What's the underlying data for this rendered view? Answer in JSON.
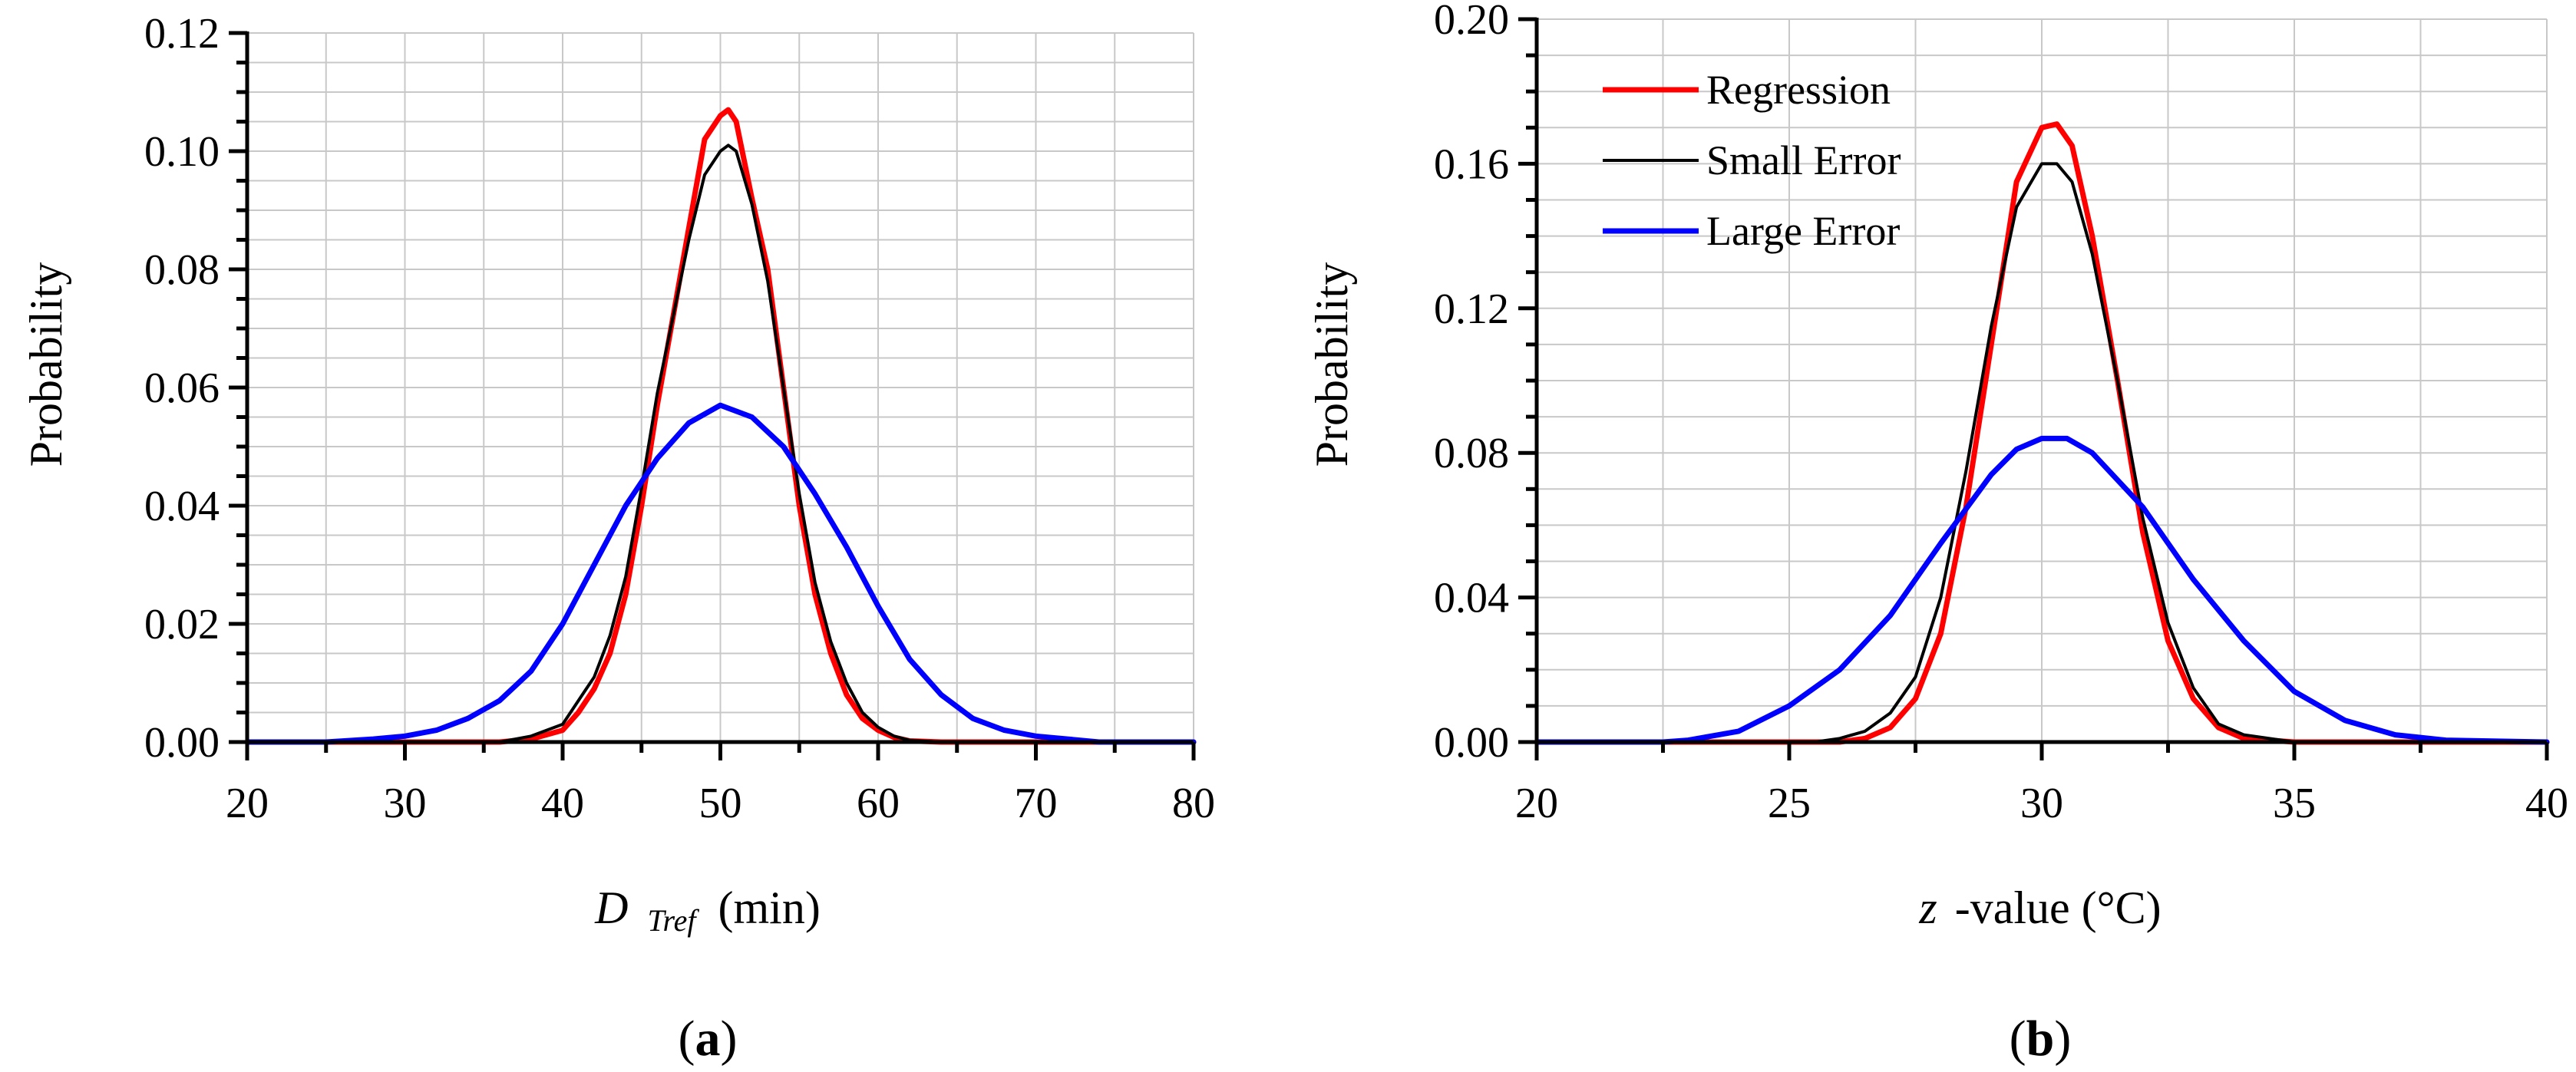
{
  "chart_data": [
    {
      "type": "line",
      "panel_label": "a",
      "title": "",
      "xlabel_main": "D",
      "xlabel_sub": "Tref",
      "xlabel_unit": "(min)",
      "ylabel": "Probability",
      "xlim": [
        20,
        80
      ],
      "ylim": [
        0,
        0.12
      ],
      "x_ticks": [
        20,
        30,
        40,
        50,
        60,
        70,
        80
      ],
      "y_ticks": [
        0,
        0.02,
        0.04,
        0.06,
        0.08,
        0.1,
        0.12
      ],
      "y_tick_labels": [
        "0.00",
        "0.02",
        "0.04",
        "0.06",
        "0.08",
        "0.10",
        "0.12"
      ],
      "grid": true,
      "series": [
        {
          "name": "Regression",
          "color": "#ff0000",
          "x": [
            20,
            36,
            38,
            40,
            41,
            42,
            43,
            44,
            45,
            46,
            47,
            48,
            49,
            50,
            50.5,
            51,
            52,
            53,
            54,
            55,
            56,
            57,
            58,
            59,
            60,
            61,
            62,
            64,
            80
          ],
          "y": [
            0,
            0,
            0.0005,
            0.002,
            0.005,
            0.009,
            0.015,
            0.025,
            0.04,
            0.057,
            0.072,
            0.087,
            0.102,
            0.106,
            0.107,
            0.105,
            0.092,
            0.08,
            0.06,
            0.04,
            0.025,
            0.015,
            0.008,
            0.004,
            0.002,
            0.0008,
            0.0002,
            0,
            0
          ]
        },
        {
          "name": "Small Error",
          "color": "#000000",
          "x": [
            20,
            36,
            38,
            40,
            41,
            42,
            43,
            44,
            45,
            46,
            47,
            48,
            49,
            50,
            50.5,
            51,
            52,
            53,
            54,
            55,
            56,
            57,
            58,
            59,
            60,
            61,
            62,
            64,
            80
          ],
          "y": [
            0,
            0,
            0.001,
            0.003,
            0.007,
            0.011,
            0.018,
            0.028,
            0.043,
            0.059,
            0.072,
            0.085,
            0.096,
            0.1,
            0.101,
            0.1,
            0.091,
            0.078,
            0.06,
            0.042,
            0.027,
            0.017,
            0.01,
            0.005,
            0.0025,
            0.001,
            0.0003,
            0,
            0
          ]
        },
        {
          "name": "Large Error",
          "color": "#0000ff",
          "x": [
            20,
            25,
            28,
            30,
            32,
            34,
            36,
            38,
            40,
            42,
            44,
            46,
            48,
            50,
            52,
            54,
            56,
            58,
            60,
            62,
            64,
            66,
            68,
            70,
            72,
            74,
            80
          ],
          "y": [
            0,
            0,
            0.0005,
            0.001,
            0.002,
            0.004,
            0.007,
            0.012,
            0.02,
            0.03,
            0.04,
            0.048,
            0.054,
            0.057,
            0.055,
            0.05,
            0.042,
            0.033,
            0.023,
            0.014,
            0.008,
            0.004,
            0.002,
            0.001,
            0.0005,
            0,
            0
          ]
        }
      ]
    },
    {
      "type": "line",
      "panel_label": "b",
      "title": "",
      "xlabel_main": "z",
      "xlabel_unit": "-value (°C)",
      "ylabel": "Probability",
      "xlim": [
        20,
        40
      ],
      "ylim": [
        0,
        0.2
      ],
      "x_ticks": [
        20,
        25,
        30,
        35,
        40
      ],
      "y_ticks": [
        0,
        0.04,
        0.08,
        0.12,
        0.16,
        0.2
      ],
      "y_tick_labels": [
        "0.00",
        "0.04",
        "0.08",
        "0.12",
        "0.16",
        "0.20"
      ],
      "grid": true,
      "legend_position": "top-left",
      "series": [
        {
          "name": "Regression",
          "color": "#ff0000",
          "x": [
            20,
            26,
            26.5,
            27,
            27.5,
            28,
            28.5,
            29,
            29.5,
            30,
            30.3,
            30.6,
            31,
            31.5,
            32,
            32.5,
            33,
            33.5,
            34,
            35,
            40
          ],
          "y": [
            0,
            0,
            0.001,
            0.004,
            0.012,
            0.03,
            0.065,
            0.11,
            0.155,
            0.17,
            0.171,
            0.165,
            0.14,
            0.1,
            0.058,
            0.028,
            0.012,
            0.004,
            0.001,
            0,
            0
          ]
        },
        {
          "name": "Small Error",
          "color": "#000000",
          "x": [
            20,
            25.5,
            26,
            26.5,
            27,
            27.5,
            28,
            28.5,
            29,
            29.5,
            30,
            30.3,
            30.6,
            31,
            31.5,
            32,
            32.5,
            33,
            33.5,
            34,
            35,
            40
          ],
          "y": [
            0,
            0,
            0.001,
            0.003,
            0.008,
            0.018,
            0.04,
            0.075,
            0.115,
            0.148,
            0.16,
            0.16,
            0.155,
            0.135,
            0.1,
            0.062,
            0.033,
            0.015,
            0.005,
            0.002,
            0,
            0
          ]
        },
        {
          "name": "Large Error",
          "color": "#0000ff",
          "x": [
            20,
            22.5,
            23,
            24,
            25,
            26,
            27,
            28,
            29,
            29.5,
            30,
            30.5,
            31,
            32,
            33,
            34,
            35,
            36,
            37,
            38,
            40
          ],
          "y": [
            0,
            0,
            0.0005,
            0.003,
            0.01,
            0.02,
            0.035,
            0.055,
            0.074,
            0.081,
            0.084,
            0.084,
            0.08,
            0.065,
            0.045,
            0.028,
            0.014,
            0.006,
            0.002,
            0.0005,
            0
          ]
        }
      ]
    }
  ]
}
